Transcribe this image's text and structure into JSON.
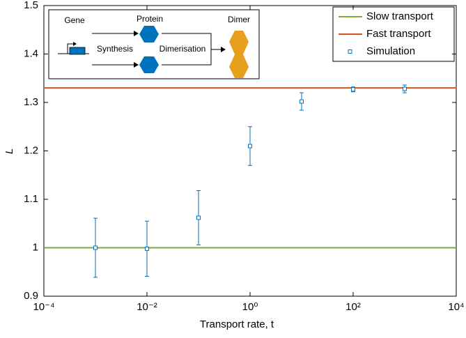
{
  "chart_data": {
    "type": "scatter",
    "x_label": "Transport rate, t",
    "y_label": "L",
    "xlim": [
      0.0001,
      10000
    ],
    "log_x": true,
    "xticks": [
      {
        "value": 0.0001,
        "label": "10⁻⁴"
      },
      {
        "value": 0.01,
        "label": "10⁻²"
      },
      {
        "value": 1,
        "label": "10⁰"
      },
      {
        "value": 100,
        "label": "10²"
      },
      {
        "value": 10000,
        "label": "10⁴"
      }
    ],
    "ylim": [
      0.9,
      1.5
    ],
    "yticks": [
      0.9,
      1,
      1.1,
      1.2,
      1.3,
      1.4,
      1.5
    ],
    "legend": "upper right",
    "reference_lines": [
      {
        "name": "Slow transport",
        "color": "#77ac30",
        "y": 1
      },
      {
        "name": "Fast transport",
        "color": "#d95319",
        "y": 1.33
      }
    ],
    "series": [
      {
        "name": "Simulation",
        "color": "#0072bd",
        "x": [
          0.001,
          0.01,
          0.1,
          1,
          10,
          100,
          1000
        ],
        "values": [
          1.0,
          0.998,
          1.062,
          1.21,
          1.302,
          1.327,
          1.328
        ],
        "errors": [
          0.061,
          0.057,
          0.056,
          0.04,
          0.018,
          0.005,
          0.008
        ]
      }
    ],
    "annotations": [
      "Gene",
      "Protein",
      "Synthesis",
      "Dimerisation",
      "Dimer"
    ]
  }
}
